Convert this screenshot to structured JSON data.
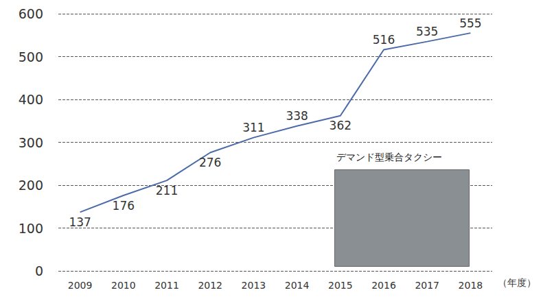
{
  "chart_data": {
    "type": "line",
    "categories": [
      "2009",
      "2010",
      "2011",
      "2012",
      "2013",
      "2014",
      "2015",
      "2016",
      "2017",
      "2018"
    ],
    "values": [
      137,
      176,
      211,
      276,
      311,
      338,
      362,
      516,
      535,
      555
    ],
    "color": "#4a6aa8",
    "xlabel": "（年度）",
    "annotation": "デマンド型乗合タクシー",
    "ylim": [
      0,
      600
    ],
    "yticks": [
      0,
      100,
      200,
      300,
      400,
      500,
      600
    ],
    "grid": true,
    "data_labels": true
  }
}
